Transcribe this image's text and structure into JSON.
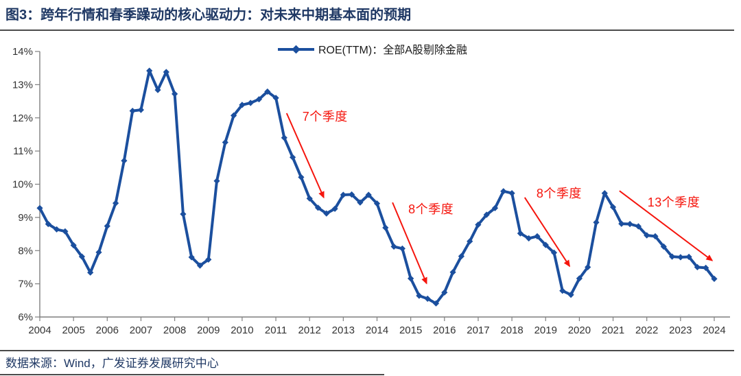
{
  "header": {
    "title": "图3：跨年行情和春季躁动的核心驱动力：对未来中期基本面的预期"
  },
  "footer": {
    "source": "数据来源：Wind，广发证券发展研究中心"
  },
  "colors": {
    "line": "#1B4F9E",
    "title": "#1F3864",
    "annotation": "#F5150D",
    "axis": "#7F7F7F",
    "tick_label": "#333333",
    "rule": "#4A4A4A"
  },
  "chart_data": {
    "type": "line",
    "legend": "ROE(TTM)：全部A股剔除金融",
    "legend_position": "top-center",
    "grid": false,
    "unit": "percent",
    "xlim": [
      2004,
      2024.5
    ],
    "ylim": [
      6,
      14
    ],
    "y_ticks": [
      "6%",
      "7%",
      "8%",
      "9%",
      "10%",
      "11%",
      "12%",
      "13%",
      "14%"
    ],
    "x_tick_labels": [
      "2004",
      "2005",
      "2006",
      "2007",
      "2008",
      "2009",
      "2010",
      "2011",
      "2012",
      "2013",
      "2014",
      "2015",
      "2016",
      "2017",
      "2018",
      "2019",
      "2020",
      "2021",
      "2022",
      "2023",
      "2024"
    ],
    "frequency": "quarterly",
    "x_start": "2004Q1",
    "x_end": "2024Q1",
    "series": [
      {
        "name": "ROE(TTM)：全部A股剔除金融",
        "values": [
          9.28,
          8.8,
          8.64,
          8.58,
          8.16,
          7.82,
          7.34,
          7.95,
          8.74,
          9.43,
          10.71,
          12.21,
          12.24,
          13.42,
          12.84,
          13.38,
          12.72,
          9.1,
          7.8,
          7.55,
          7.73,
          10.1,
          11.26,
          12.07,
          12.39,
          12.45,
          12.56,
          12.79,
          12.6,
          11.4,
          10.81,
          10.21,
          9.57,
          9.29,
          9.12,
          9.26,
          9.68,
          9.69,
          9.45,
          9.68,
          9.42,
          8.69,
          8.12,
          8.06,
          7.16,
          6.64,
          6.55,
          6.41,
          6.74,
          7.35,
          7.83,
          8.28,
          8.78,
          9.08,
          9.28,
          9.79,
          9.73,
          8.52,
          8.37,
          8.43,
          8.17,
          7.94,
          6.79,
          6.67,
          7.16,
          7.5,
          8.85,
          9.73,
          9.31,
          8.81,
          8.8,
          8.73,
          8.46,
          8.43,
          8.12,
          7.82,
          7.8,
          7.81,
          7.5,
          7.48,
          7.15
        ]
      }
    ],
    "annotations": [
      {
        "label": "7个季度",
        "arrow": {
          "x1": 2011.32,
          "y1": 12.14,
          "x2": 2012.42,
          "y2": 9.6
        },
        "label_pos": {
          "x": 2012.46,
          "y": 11.91
        }
      },
      {
        "label": "8个季度",
        "arrow": {
          "x1": 2014.46,
          "y1": 9.45,
          "x2": 2015.47,
          "y2": 7.01
        },
        "label_pos": {
          "x": 2015.6,
          "y": 9.12
        }
      },
      {
        "label": "8个季度",
        "arrow": {
          "x1": 2018.38,
          "y1": 9.6,
          "x2": 2019.71,
          "y2": 7.53
        },
        "label_pos": {
          "x": 2019.4,
          "y": 9.6
        }
      },
      {
        "label": "13个季度",
        "arrow": {
          "x1": 2021.19,
          "y1": 9.8,
          "x2": 2023.94,
          "y2": 7.7
        },
        "label_pos": {
          "x": 2022.8,
          "y": 9.33
        }
      }
    ]
  }
}
